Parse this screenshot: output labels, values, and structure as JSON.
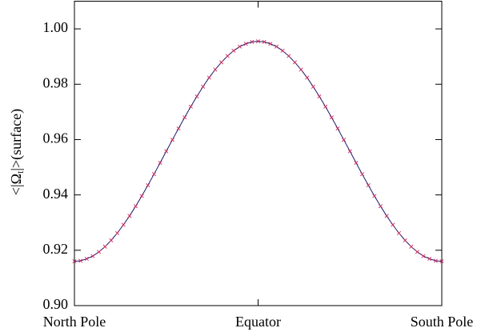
{
  "chart_data": {
    "type": "line",
    "ylabel": [
      "<|Ω",
      "t",
      "|>(surface)"
    ],
    "categories": [
      "North Pole",
      null,
      null,
      null,
      null,
      null,
      null,
      null,
      null,
      null,
      null,
      null,
      null,
      null,
      null,
      null,
      null,
      null,
      null,
      null,
      null,
      null,
      null,
      null,
      null,
      null,
      null,
      null,
      null,
      null,
      "Equator",
      null,
      null,
      null,
      null,
      null,
      null,
      null,
      null,
      null,
      null,
      null,
      null,
      null,
      null,
      null,
      null,
      null,
      null,
      null,
      null,
      null,
      null,
      null,
      null,
      null,
      null,
      null,
      null,
      null,
      "South Pole"
    ],
    "series": [
      {
        "color": "#1a1a6e",
        "marker_color": "#cc2255",
        "values": [
          0.916,
          0.9162,
          0.9169,
          0.9179,
          0.9194,
          0.9213,
          0.9236,
          0.9262,
          0.9292,
          0.9324,
          0.9359,
          0.9396,
          0.9435,
          0.9475,
          0.9516,
          0.9558,
          0.9599,
          0.964,
          0.968,
          0.9719,
          0.9756,
          0.9791,
          0.9824,
          0.9853,
          0.9879,
          0.9902,
          0.9921,
          0.9936,
          0.9946,
          0.9953,
          0.9955,
          0.9953,
          0.9946,
          0.9936,
          0.9921,
          0.9902,
          0.9879,
          0.9853,
          0.9824,
          0.9791,
          0.9756,
          0.9719,
          0.968,
          0.964,
          0.9599,
          0.9558,
          0.9516,
          0.9475,
          0.9435,
          0.9396,
          0.9359,
          0.9324,
          0.9292,
          0.9262,
          0.9236,
          0.9213,
          0.9194,
          0.9179,
          0.9169,
          0.9162,
          0.916
        ]
      }
    ],
    "ylim": [
      0.9,
      1.01
    ],
    "yticks": [
      {
        "value": 0.9,
        "label": "0.90"
      },
      0.92,
      0.94,
      0.96,
      0.98,
      {
        "value": 1.0,
        "label": "1.00"
      }
    ]
  }
}
